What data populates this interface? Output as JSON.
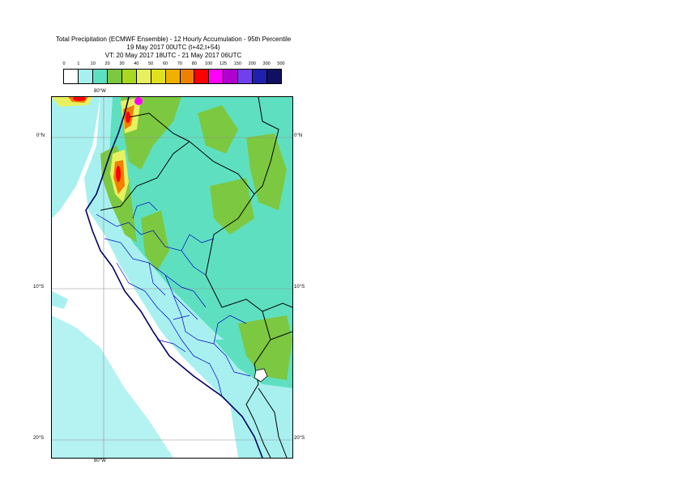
{
  "title": {
    "line1": "Total Precipitation (ECMWF Ensemble) - 12 Hourly Accumulation - 95th Percentile",
    "line2": "19 May 2017 00UTC (t+42,t+54)",
    "line3": "VT: 20 May 2017 18UTC - 21 May 2017 06UTC"
  },
  "legend": {
    "labels": [
      "0",
      "1",
      "10",
      "20",
      "30",
      "40",
      "50",
      "60",
      "70",
      "80",
      "100",
      "125",
      "150",
      "200",
      "300",
      "500"
    ],
    "colors": [
      "#ffffff",
      "#a8f0f0",
      "#5ee0c0",
      "#7cc840",
      "#a8d820",
      "#e8f060",
      "#e0e020",
      "#f0b000",
      "#f08000",
      "#ff0000",
      "#ff00ff",
      "#b000d0",
      "#7040f0",
      "#2020b0",
      "#101060"
    ]
  },
  "axes": {
    "top_lon": "80°W",
    "bottom_lon": "80°W",
    "lat_labels": [
      "0°N",
      "10°S",
      "20°S"
    ]
  },
  "colors": {
    "land_light": "#a8f0f0",
    "land_medium": "#5ee0c0",
    "land_heavy": "#7cc840",
    "peak_yellow": "#e8f060",
    "peak_orange": "#f08000",
    "peak_red": "#ff0000",
    "peak_magenta": "#ff00ff",
    "coast": "#000060",
    "borders": "#000000",
    "regions": "#0000c0",
    "grid": "#909090"
  }
}
